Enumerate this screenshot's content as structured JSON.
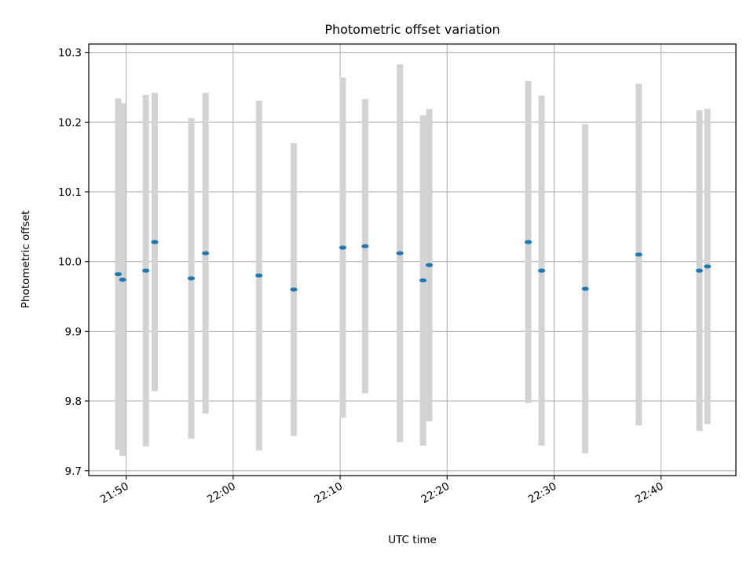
{
  "chart_data": {
    "type": "scatter",
    "title": "Photometric offset variation",
    "xlabel": "UTC time",
    "ylabel": "Photometric offset",
    "xlim": [
      "21:46:30",
      "22:47:00"
    ],
    "ylim": [
      9.693,
      10.312
    ],
    "x_ticks": [
      "21:50",
      "22:00",
      "22:10",
      "22:20",
      "22:30",
      "22:40"
    ],
    "y_ticks": [
      "9.7",
      "9.8",
      "9.9",
      "10.0",
      "10.1",
      "10.2",
      "10.3"
    ],
    "grid": true,
    "colors": {
      "points": "#1f77b4",
      "error_bars": "#d3d3d3",
      "grid": "#b0b0b0"
    },
    "points": [
      {
        "x": "21:49:15",
        "y": 9.982,
        "yerr": 0.252
      },
      {
        "x": "21:49:40",
        "y": 9.974,
        "yerr": 0.253
      },
      {
        "x": "21:51:50",
        "y": 9.987,
        "yerr": 0.252
      },
      {
        "x": "21:52:40",
        "y": 10.028,
        "yerr": 0.214
      },
      {
        "x": "21:56:05",
        "y": 9.976,
        "yerr": 0.23
      },
      {
        "x": "21:57:25",
        "y": 10.012,
        "yerr": 0.23
      },
      {
        "x": "22:02:25",
        "y": 9.98,
        "yerr": 0.251
      },
      {
        "x": "22:05:40",
        "y": 9.96,
        "yerr": 0.21
      },
      {
        "x": "22:10:15",
        "y": 10.02,
        "yerr": 0.244
      },
      {
        "x": "22:12:20",
        "y": 10.022,
        "yerr": 0.211
      },
      {
        "x": "22:15:35",
        "y": 10.012,
        "yerr": 0.271
      },
      {
        "x": "22:17:45",
        "y": 9.973,
        "yerr": 0.237
      },
      {
        "x": "22:18:20",
        "y": 9.995,
        "yerr": 0.224
      },
      {
        "x": "22:27:35",
        "y": 10.028,
        "yerr": 0.231
      },
      {
        "x": "22:28:50",
        "y": 9.987,
        "yerr": 0.251
      },
      {
        "x": "22:32:55",
        "y": 9.961,
        "yerr": 0.236
      },
      {
        "x": "22:37:55",
        "y": 10.01,
        "yerr": 0.245
      },
      {
        "x": "22:43:35",
        "y": 9.987,
        "yerr": 0.23
      },
      {
        "x": "22:44:20",
        "y": 9.993,
        "yerr": 0.226
      }
    ]
  }
}
